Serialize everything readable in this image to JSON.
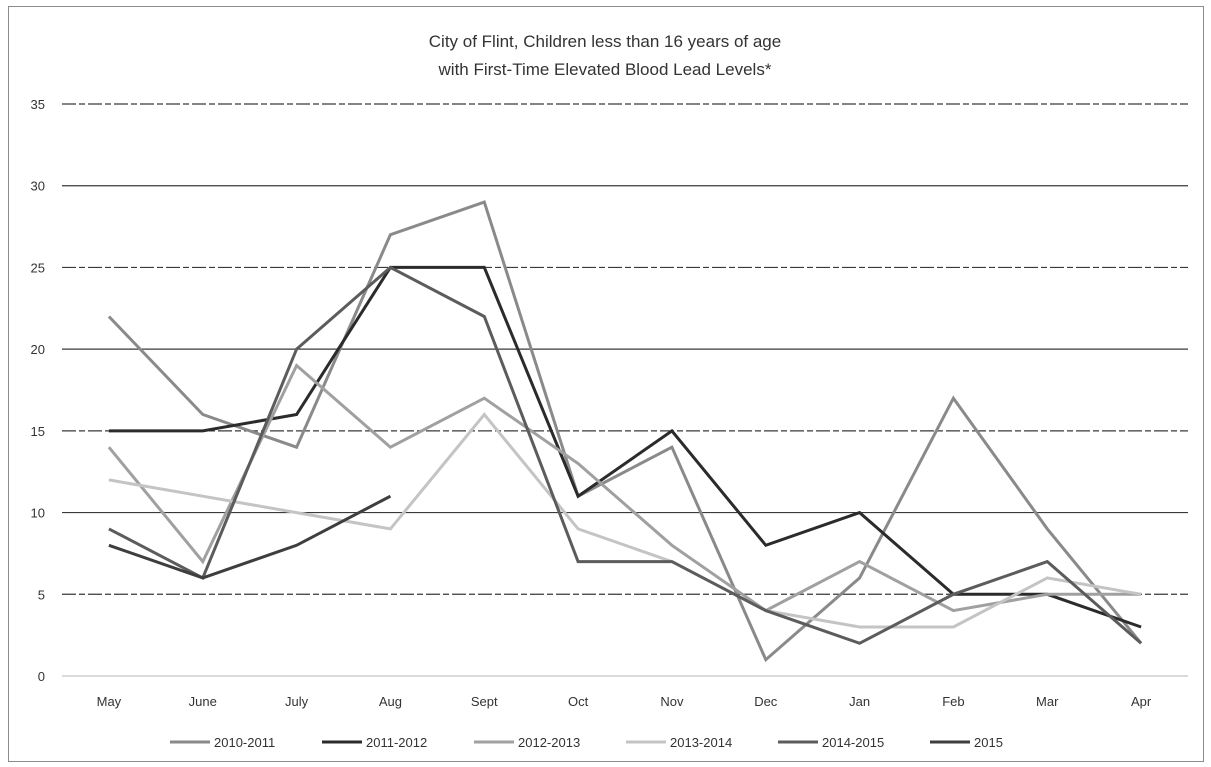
{
  "chart_data": {
    "type": "line",
    "title": "City of Flint, Children less than 16 years of age",
    "subtitle": "with First-Time Elevated Blood Lead Levels*",
    "xlabel": "",
    "ylabel": "",
    "ylim": [
      0,
      35
    ],
    "yticks": [
      0,
      5,
      10,
      15,
      20,
      25,
      30,
      35
    ],
    "grid": true,
    "legend_position": "bottom",
    "categories": [
      "May",
      "June",
      "July",
      "Aug",
      "Sept",
      "Oct",
      "Nov",
      "Dec",
      "Jan",
      "Feb",
      "Mar",
      "Apr"
    ],
    "series": [
      {
        "name": "2010-2011",
        "color": "#8a8a8a",
        "values": [
          22,
          16,
          14,
          27,
          29,
          11,
          14,
          1,
          6,
          17,
          9,
          2
        ]
      },
      {
        "name": "2011-2012",
        "color": "#2b2b2b",
        "values": [
          15,
          15,
          16,
          25,
          25,
          11,
          15,
          8,
          10,
          5,
          5,
          3
        ]
      },
      {
        "name": "2012-2013",
        "color": "#a0a0a0",
        "values": [
          14,
          7,
          19,
          14,
          17,
          13,
          8,
          4,
          7,
          4,
          5,
          5
        ]
      },
      {
        "name": "2013-2014",
        "color": "#c4c4c4",
        "values": [
          12,
          11,
          10,
          9,
          16,
          9,
          7,
          4,
          3,
          3,
          6,
          5
        ]
      },
      {
        "name": "2014-2015",
        "color": "#5c5c5c",
        "values": [
          9,
          6,
          20,
          25,
          22,
          7,
          7,
          4,
          2,
          5,
          7,
          2
        ]
      },
      {
        "name": "2015",
        "color": "#3e3e3e",
        "values": [
          8,
          6,
          8,
          11,
          null,
          null,
          null,
          null,
          null,
          null,
          null,
          null
        ]
      }
    ]
  }
}
